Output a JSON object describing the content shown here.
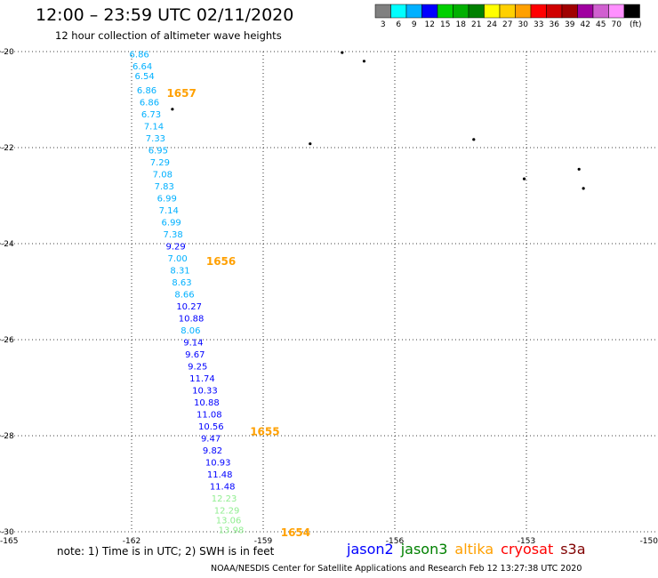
{
  "title": "12:00 – 23:59 UTC 02/11/2020",
  "subtitle": "12 hour collection of altimeter wave heights",
  "legend": {
    "unit": "(ft)",
    "bins": [
      {
        "label": "3",
        "color": "#808080"
      },
      {
        "label": "6",
        "color": "#00ffff"
      },
      {
        "label": "9",
        "color": "#00b0ff"
      },
      {
        "label": "12",
        "color": "#0000ff"
      },
      {
        "label": "15",
        "color": "#00d000"
      },
      {
        "label": "18",
        "color": "#00b000"
      },
      {
        "label": "21",
        "color": "#008000"
      },
      {
        "label": "24",
        "color": "#ffff00"
      },
      {
        "label": "27",
        "color": "#ffd000"
      },
      {
        "label": "30",
        "color": "#ffa000"
      },
      {
        "label": "33",
        "color": "#ff0000"
      },
      {
        "label": "36",
        "color": "#d00000"
      },
      {
        "label": "39",
        "color": "#a00000"
      },
      {
        "label": "42",
        "color": "#a000a0"
      },
      {
        "label": "45",
        "color": "#d060d0"
      },
      {
        "label": "70",
        "color": "#ff90ff"
      },
      {
        "label": "",
        "color": "#000000"
      }
    ]
  },
  "axes": {
    "lon_labels": [
      "-165",
      "-162",
      "-159",
      "-156",
      "-153",
      "-150"
    ],
    "lat_labels": [
      "-20",
      "-22",
      "-24",
      "-26",
      "-28",
      "-30"
    ]
  },
  "track": {
    "readings": [
      {
        "lat": -20.05,
        "lon": -162.05,
        "swh": "6.86",
        "color": "#00b0ff"
      },
      {
        "lat": -20.3,
        "lon": -161.98,
        "swh": "6.64",
        "color": "#00b0ff"
      },
      {
        "lat": -20.5,
        "lon": -161.93,
        "swh": "6.54",
        "color": "#00b0ff"
      },
      {
        "lat": -20.8,
        "lon": -161.88,
        "swh": "6.86",
        "color": "#00b0ff"
      },
      {
        "lat": -21.05,
        "lon": -161.82,
        "swh": "6.86",
        "color": "#00b0ff"
      },
      {
        "lat": -21.3,
        "lon": -161.78,
        "swh": "6.73",
        "color": "#00b0ff"
      },
      {
        "lat": -21.55,
        "lon": -161.72,
        "swh": "7.14",
        "color": "#00b0ff"
      },
      {
        "lat": -21.8,
        "lon": -161.68,
        "swh": "7.33",
        "color": "#00b0ff"
      },
      {
        "lat": -22.05,
        "lon": -161.62,
        "swh": "6.95",
        "color": "#00b0ff"
      },
      {
        "lat": -22.3,
        "lon": -161.58,
        "swh": "7.29",
        "color": "#00b0ff"
      },
      {
        "lat": -22.55,
        "lon": -161.52,
        "swh": "7.08",
        "color": "#00b0ff"
      },
      {
        "lat": -22.8,
        "lon": -161.48,
        "swh": "7.83",
        "color": "#00b0ff"
      },
      {
        "lat": -23.05,
        "lon": -161.42,
        "swh": "6.99",
        "color": "#00b0ff"
      },
      {
        "lat": -23.3,
        "lon": -161.38,
        "swh": "7.14",
        "color": "#00b0ff"
      },
      {
        "lat": -23.55,
        "lon": -161.32,
        "swh": "6.99",
        "color": "#00b0ff"
      },
      {
        "lat": -23.8,
        "lon": -161.28,
        "swh": "7.38",
        "color": "#00b0ff"
      },
      {
        "lat": -24.05,
        "lon": -161.22,
        "swh": "9.29",
        "color": "#0000ff"
      },
      {
        "lat": -24.3,
        "lon": -161.18,
        "swh": "7.00",
        "color": "#00b0ff"
      },
      {
        "lat": -24.55,
        "lon": -161.12,
        "swh": "8.31",
        "color": "#00b0ff"
      },
      {
        "lat": -24.8,
        "lon": -161.08,
        "swh": "8.63",
        "color": "#00b0ff"
      },
      {
        "lat": -25.05,
        "lon": -161.02,
        "swh": "8.66",
        "color": "#00b0ff"
      },
      {
        "lat": -25.3,
        "lon": -160.98,
        "swh": "10.27",
        "color": "#0000ff"
      },
      {
        "lat": -25.55,
        "lon": -160.93,
        "swh": "10.88",
        "color": "#0000ff"
      },
      {
        "lat": -25.8,
        "lon": -160.88,
        "swh": "8.06",
        "color": "#00b0ff"
      },
      {
        "lat": -26.05,
        "lon": -160.82,
        "swh": "9.14",
        "color": "#0000ff"
      },
      {
        "lat": -26.3,
        "lon": -160.78,
        "swh": "9.67",
        "color": "#0000ff"
      },
      {
        "lat": -26.55,
        "lon": -160.72,
        "swh": "9.25",
        "color": "#0000ff"
      },
      {
        "lat": -26.8,
        "lon": -160.68,
        "swh": "11.74",
        "color": "#0000ff"
      },
      {
        "lat": -27.05,
        "lon": -160.62,
        "swh": "10.33",
        "color": "#0000ff"
      },
      {
        "lat": -27.3,
        "lon": -160.58,
        "swh": "10.88",
        "color": "#0000ff"
      },
      {
        "lat": -27.55,
        "lon": -160.52,
        "swh": "11.08",
        "color": "#0000ff"
      },
      {
        "lat": -27.8,
        "lon": -160.48,
        "swh": "10.56",
        "color": "#0000ff"
      },
      {
        "lat": -28.05,
        "lon": -160.42,
        "swh": "9.47",
        "color": "#0000ff"
      },
      {
        "lat": -28.3,
        "lon": -160.38,
        "swh": "9.82",
        "color": "#0000ff"
      },
      {
        "lat": -28.55,
        "lon": -160.32,
        "swh": "10.93",
        "color": "#0000ff"
      },
      {
        "lat": -28.8,
        "lon": -160.28,
        "swh": "11.48",
        "color": "#0000ff"
      },
      {
        "lat": -29.05,
        "lon": -160.22,
        "swh": "11.48",
        "color": "#0000ff"
      },
      {
        "lat": -29.3,
        "lon": -160.18,
        "swh": "12.23",
        "color": "#90ee90"
      },
      {
        "lat": -29.55,
        "lon": -160.12,
        "swh": "12.29",
        "color": "#90ee90"
      },
      {
        "lat": -29.75,
        "lon": -160.08,
        "swh": "13.06",
        "color": "#90ee90"
      },
      {
        "lat": -29.95,
        "lon": -160.02,
        "swh": "13.98",
        "color": "#90ee90"
      }
    ],
    "time_marks": [
      {
        "lat": -20.85,
        "lon": -161.2,
        "label": "1657"
      },
      {
        "lat": -24.35,
        "lon": -160.3,
        "label": "1656"
      },
      {
        "lat": -27.9,
        "lon": -159.3,
        "label": "1655"
      },
      {
        "lat": -30.0,
        "lon": -158.6,
        "label": "1654"
      }
    ],
    "time_color": "#ffa000"
  },
  "islands": [
    {
      "lat": -20.02,
      "lon": -157.2
    },
    {
      "lat": -20.2,
      "lon": -156.7
    },
    {
      "lat": -21.2,
      "lon": -161.07
    },
    {
      "lat": -21.92,
      "lon": -157.93
    },
    {
      "lat": -21.83,
      "lon": -154.2
    },
    {
      "lat": -22.65,
      "lon": -153.05
    },
    {
      "lat": -22.45,
      "lon": -151.8
    },
    {
      "lat": -22.85,
      "lon": -151.7
    }
  ],
  "note": "note:  1) Time is in UTC;  2) SWH is in feet",
  "satellites": [
    {
      "name": "jason2",
      "color": "#0000ff"
    },
    {
      "name": "jason3",
      "color": "#008000"
    },
    {
      "name": "altika",
      "color": "#ffa000"
    },
    {
      "name": "cryosat",
      "color": "#ff0000"
    },
    {
      "name": "s3a",
      "color": "#800000"
    }
  ],
  "credit": "NOAA/NESDIS Center for Satellite Applications and Research     Feb 12 13:27:38 UTC 2020"
}
